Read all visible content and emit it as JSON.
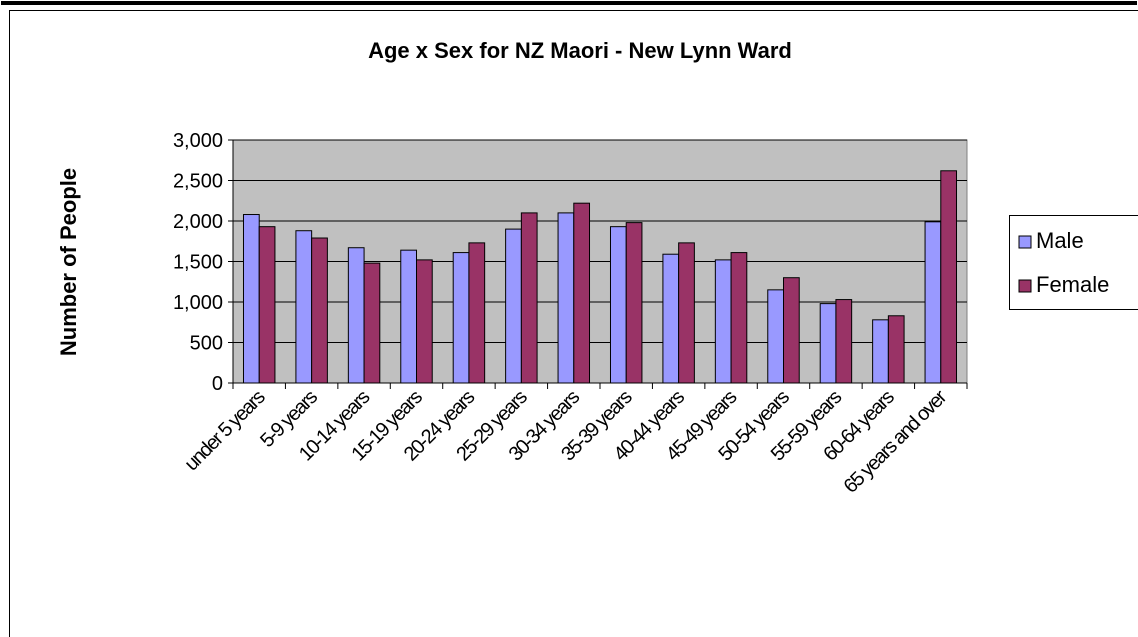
{
  "chart_data": {
    "type": "bar",
    "title": "Age x Sex for NZ Maori - New Lynn Ward",
    "y_label": "Number of People",
    "categories": [
      "under 5 years",
      "5-9 years",
      "10-14 years",
      "15-19 years",
      "20-24 years",
      "25-29 years",
      "30-34 years",
      "35-39 years",
      "40-44 years",
      "45-49 years",
      "50-54 years",
      "55-59 years",
      "60-64 years",
      "65 years and over"
    ],
    "series": [
      {
        "name": "Male",
        "color": "#9999ff",
        "values": [
          2080,
          1880,
          1670,
          1640,
          1610,
          1900,
          2100,
          1930,
          1590,
          1520,
          1150,
          980,
          780,
          1990
        ]
      },
      {
        "name": "Female",
        "color": "#993366",
        "values": [
          1930,
          1790,
          1480,
          1520,
          1730,
          2100,
          2220,
          1980,
          1730,
          1610,
          1300,
          1030,
          830,
          2620
        ]
      }
    ],
    "ylim": [
      0,
      3000
    ],
    "yticks": [
      0,
      500,
      {
        "value": 1000,
        "label": "1,000"
      },
      {
        "value": 1500,
        "label": "1,500"
      },
      {
        "value": 2000,
        "label": "2,000"
      },
      {
        "value": 2500,
        "label": "2,500"
      },
      {
        "value": 3000,
        "label": "3,000"
      }
    ],
    "grid": true,
    "legend": "right"
  }
}
